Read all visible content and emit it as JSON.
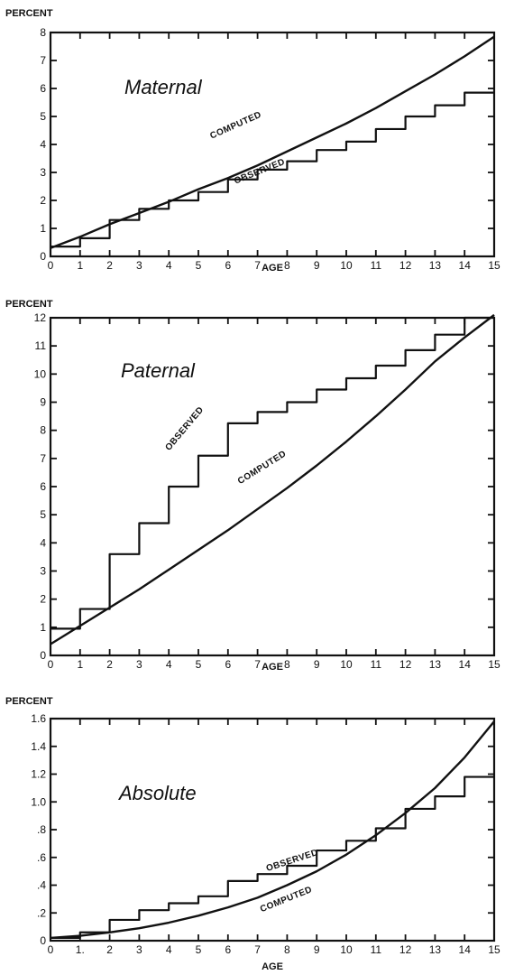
{
  "chart_data": [
    {
      "type": "line",
      "label": "Maternal",
      "ylabel": "PERCENT",
      "xlabel": "AGE",
      "xlim": [
        0,
        15
      ],
      "ylim": [
        0,
        8
      ],
      "x_ticks": [
        "0",
        "1",
        "2",
        "3",
        "4",
        "5",
        "6",
        "7",
        "8",
        "9",
        "10",
        "11",
        "12",
        "13",
        "14",
        "15"
      ],
      "y_ticks": [
        "0",
        "1",
        "2",
        "3",
        "4",
        "5",
        "6",
        "7",
        "8"
      ],
      "series": [
        {
          "name": "COMPUTED",
          "style": "curve",
          "x": [
            0,
            1,
            2,
            3,
            4,
            5,
            6,
            7,
            8,
            9,
            10,
            11,
            12,
            13,
            14,
            15
          ],
          "y": [
            0.3,
            0.7,
            1.15,
            1.55,
            1.95,
            2.4,
            2.8,
            3.25,
            3.75,
            4.25,
            4.75,
            5.3,
            5.9,
            6.5,
            7.15,
            7.85
          ]
        },
        {
          "name": "OBSERVED",
          "style": "step",
          "x": [
            0,
            1,
            2,
            3,
            4,
            5,
            6,
            7,
            8,
            9,
            10,
            11,
            12,
            13,
            14,
            15
          ],
          "y": [
            0.35,
            0.65,
            1.3,
            1.7,
            2.0,
            2.3,
            2.75,
            3.1,
            3.4,
            3.8,
            4.1,
            4.55,
            5.0,
            5.4,
            5.85,
            5.85
          ]
        }
      ]
    },
    {
      "type": "line",
      "label": "Paternal",
      "ylabel": "PERCENT",
      "xlabel": "AGE",
      "xlim": [
        0,
        15
      ],
      "ylim": [
        0,
        12
      ],
      "x_ticks": [
        "0",
        "1",
        "2",
        "3",
        "4",
        "5",
        "6",
        "7",
        "8",
        "9",
        "10",
        "11",
        "12",
        "13",
        "14",
        "15"
      ],
      "y_ticks": [
        "0",
        "1",
        "2",
        "3",
        "4",
        "5",
        "6",
        "7",
        "8",
        "9",
        "10",
        "11",
        "12"
      ],
      "series": [
        {
          "name": "COMPUTED",
          "style": "curve",
          "x": [
            0,
            1,
            2,
            3,
            4,
            5,
            6,
            7,
            8,
            9,
            10,
            11,
            12,
            13,
            14,
            15
          ],
          "y": [
            0.4,
            1.05,
            1.7,
            2.35,
            3.05,
            3.75,
            4.45,
            5.2,
            5.95,
            6.75,
            7.6,
            8.5,
            9.45,
            10.45,
            11.3,
            12.1
          ]
        },
        {
          "name": "OBSERVED",
          "style": "step",
          "x": [
            0,
            1,
            2,
            3,
            4,
            5,
            6,
            7,
            8,
            9,
            10,
            11,
            12,
            13,
            14,
            15
          ],
          "y": [
            0.95,
            1.65,
            3.6,
            4.7,
            6.0,
            7.1,
            8.25,
            8.65,
            9.0,
            9.45,
            9.85,
            10.3,
            10.85,
            11.4,
            12.0,
            12.0
          ]
        }
      ]
    },
    {
      "type": "line",
      "label": "Absolute",
      "ylabel": "PERCENT",
      "xlabel": "AGE",
      "xlim": [
        0,
        15
      ],
      "ylim": [
        0,
        1.6
      ],
      "x_ticks": [
        "0",
        "1.",
        "2",
        "3",
        "4",
        "5",
        "6",
        "7",
        "8",
        "9",
        "10",
        "11",
        "12",
        "13",
        "14",
        "15"
      ],
      "y_ticks": [
        "0",
        ".2",
        ".4",
        ".6",
        ".8",
        "1.0",
        "1.2",
        "1.4",
        "1.6"
      ],
      "series": [
        {
          "name": "COMPUTED",
          "style": "curve",
          "x": [
            0,
            1,
            2,
            3,
            4,
            5,
            6,
            7,
            8,
            9,
            10,
            11,
            12,
            13,
            14,
            15
          ],
          "y": [
            0.02,
            0.035,
            0.06,
            0.09,
            0.13,
            0.18,
            0.24,
            0.31,
            0.4,
            0.5,
            0.62,
            0.76,
            0.92,
            1.1,
            1.32,
            1.58
          ]
        },
        {
          "name": "OBSERVED",
          "style": "step",
          "x": [
            0,
            1,
            2,
            3,
            4,
            5,
            6,
            7,
            8,
            9,
            10,
            11,
            12,
            13,
            14,
            15
          ],
          "y": [
            0.02,
            0.06,
            0.15,
            0.22,
            0.27,
            0.32,
            0.43,
            0.48,
            0.54,
            0.65,
            0.72,
            0.81,
            0.95,
            1.04,
            1.18,
            1.18
          ]
        }
      ]
    }
  ]
}
